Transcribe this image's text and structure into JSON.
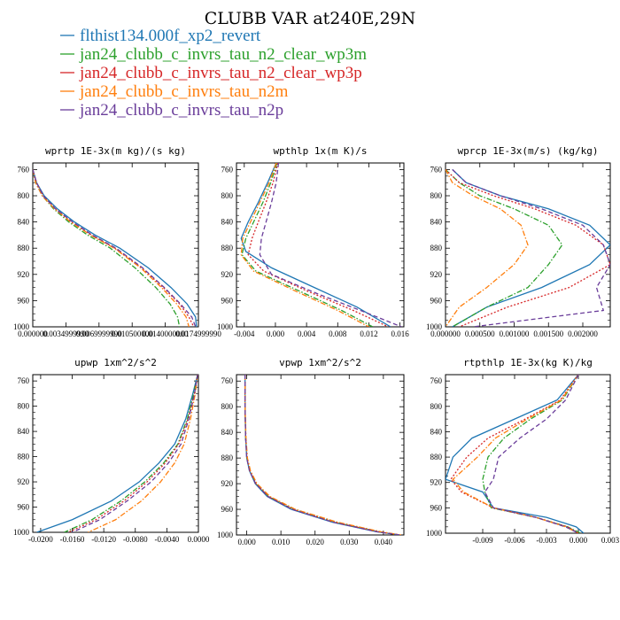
{
  "title": "CLUBB VAR at240E,29N",
  "legend": [
    {
      "name": "flthist134.000f_xp2_revert",
      "color": "#1f77b4",
      "dash": ""
    },
    {
      "name": "jan24_clubb_c_invrs_tau_n2_clear_wp3m",
      "color": "#2ca02c",
      "dash": "6,2,1.5,2"
    },
    {
      "name": "jan24_clubb_c_invrs_tau_n2_clear_wp3p",
      "color": "#d62728",
      "dash": "2,2"
    },
    {
      "name": "jan24_clubb_c_invrs_tau_n2m",
      "color": "#ff7f0e",
      "dash": "6,2,1.5,2"
    },
    {
      "name": "jan24_clubb_c_invrs_tau_n2p",
      "color": "#6a3d9a",
      "dash": "5,3"
    }
  ],
  "chart_data": [
    {
      "type": "line",
      "title": "wprtp  1E-3x(m kg)/(s kg)",
      "xlim": [
        0,
        0.0175
      ],
      "ylim": [
        1000,
        750
      ],
      "xticks": [
        0.0,
        0.0035,
        0.007,
        0.0105,
        0.014,
        0.0175
      ],
      "xticklabels": [
        "0.000000",
        "0.0034999990",
        "0.0069999990",
        "0.010500000",
        "0.0140000000",
        "0.0174999990"
      ],
      "yticks": [
        760,
        800,
        840,
        880,
        920,
        960,
        1000
      ],
      "series": [
        {
          "name": "flthist134.000f_xp2_revert",
          "x": [
            0.0,
            0.0004,
            0.0012,
            0.0026,
            0.0044,
            0.0066,
            0.0092,
            0.0122,
            0.0146,
            0.0163,
            0.0172,
            0.0173
          ],
          "y": [
            760,
            780,
            800,
            820,
            840,
            860,
            880,
            910,
            940,
            965,
            985,
            1000
          ]
        },
        {
          "name": "jan24_clubb_c_invrs_tau_n2_clear_wp3m",
          "x": [
            0.0,
            0.0003,
            0.001,
            0.0022,
            0.0038,
            0.0058,
            0.0082,
            0.0108,
            0.013,
            0.0145,
            0.0153,
            0.0155
          ],
          "y": [
            760,
            780,
            800,
            820,
            840,
            860,
            880,
            910,
            940,
            965,
            985,
            1000
          ]
        },
        {
          "name": "jan24_clubb_c_invrs_tau_n2_clear_wp3p",
          "x": [
            0.0,
            0.0004,
            0.0011,
            0.0024,
            0.0041,
            0.0062,
            0.0087,
            0.0115,
            0.0138,
            0.0155,
            0.0165,
            0.017
          ],
          "y": [
            760,
            780,
            800,
            820,
            840,
            860,
            880,
            910,
            940,
            965,
            985,
            1000
          ]
        },
        {
          "name": "jan24_clubb_c_invrs_tau_n2m",
          "x": [
            0.0,
            0.0003,
            0.001,
            0.0023,
            0.004,
            0.0061,
            0.0086,
            0.0114,
            0.0136,
            0.0152,
            0.0162,
            0.0165
          ],
          "y": [
            760,
            780,
            800,
            820,
            840,
            860,
            880,
            910,
            940,
            965,
            985,
            1000
          ]
        },
        {
          "name": "jan24_clubb_c_invrs_tau_n2p",
          "x": [
            0.0,
            0.0004,
            0.0011,
            0.0024,
            0.0042,
            0.0063,
            0.0088,
            0.0116,
            0.0139,
            0.0156,
            0.0168,
            0.0172
          ],
          "y": [
            760,
            780,
            800,
            820,
            840,
            860,
            880,
            910,
            940,
            965,
            985,
            1000
          ]
        }
      ]
    },
    {
      "type": "line",
      "title": "wpthlp  1x(m K)/s",
      "xlim": [
        -0.005,
        0.0165
      ],
      "ylim": [
        1000,
        750
      ],
      "xticks": [
        -0.004,
        0.0,
        0.004,
        0.008,
        0.012,
        0.016
      ],
      "xticklabels": [
        "-0.004",
        "0.000",
        "0.004",
        "0.008",
        "0.012",
        "0.016"
      ],
      "yticks": [
        760,
        800,
        840,
        880,
        920,
        960,
        1000
      ],
      "series": [
        {
          "name": "flthist134.000f_xp2_revert",
          "x": [
            0.0001,
            -0.001,
            -0.0022,
            -0.0035,
            -0.0044,
            -0.0038,
            -0.0005,
            0.005,
            0.0105,
            0.0148
          ],
          "y": [
            750,
            780,
            810,
            840,
            865,
            885,
            910,
            940,
            970,
            1000
          ]
        },
        {
          "name": "jan24_clubb_c_invrs_tau_n2_clear_wp3m",
          "x": [
            0.0002,
            -0.0006,
            -0.0016,
            -0.0028,
            -0.0038,
            -0.0043,
            -0.0025,
            0.003,
            0.0085,
            0.0125
          ],
          "y": [
            750,
            780,
            810,
            840,
            865,
            890,
            915,
            945,
            975,
            1000
          ]
        },
        {
          "name": "jan24_clubb_c_invrs_tau_n2_clear_wp3p",
          "x": [
            0.0003,
            -0.0003,
            -0.0012,
            -0.0022,
            -0.003,
            -0.0035,
            -0.0015,
            0.004,
            0.01,
            0.0145
          ],
          "y": [
            750,
            780,
            810,
            840,
            865,
            890,
            915,
            945,
            975,
            1000
          ]
        },
        {
          "name": "jan24_clubb_c_invrs_tau_n2m",
          "x": [
            0.0001,
            -0.0008,
            -0.002,
            -0.0032,
            -0.0042,
            -0.0044,
            -0.0028,
            0.0025,
            0.008,
            0.012
          ],
          "y": [
            750,
            780,
            810,
            840,
            865,
            890,
            915,
            945,
            975,
            1000
          ]
        },
        {
          "name": "jan24_clubb_c_invrs_tau_n2p",
          "x": [
            0.0004,
            0.0001,
            -0.0005,
            -0.0012,
            -0.0018,
            -0.002,
            -0.0005,
            0.0055,
            0.012,
            0.0162
          ],
          "y": [
            750,
            780,
            810,
            840,
            865,
            890,
            920,
            950,
            980,
            1000
          ]
        }
      ]
    },
    {
      "type": "line",
      "title": "wprcp  1E-3x(m/s) (kg/kg)",
      "xlim": [
        0,
        0.0024
      ],
      "ylim": [
        1000,
        750
      ],
      "xticks": [
        0.0,
        0.0005,
        0.001,
        0.0015,
        0.002
      ],
      "xticklabels": [
        "0.000000",
        "0.000500",
        "0.001000",
        "0.001500",
        "0.002000"
      ],
      "yticks": [
        760,
        800,
        840,
        880,
        920,
        960,
        1000
      ],
      "series": [
        {
          "name": "flthist134.000f_xp2_revert",
          "x": [
            0.0001,
            0.0003,
            0.0008,
            0.0015,
            0.0021,
            0.0024,
            0.0021,
            0.0014,
            0.0006,
            0.0001
          ],
          "y": [
            760,
            780,
            800,
            820,
            845,
            875,
            905,
            940,
            970,
            1000
          ]
        },
        {
          "name": "jan24_clubb_c_invrs_tau_n2_clear_wp3m",
          "x": [
            0.0,
            0.0002,
            0.0005,
            0.001,
            0.0015,
            0.0017,
            0.0015,
            0.0012,
            0.0006,
            0.0001
          ],
          "y": [
            760,
            780,
            800,
            820,
            845,
            875,
            905,
            940,
            970,
            1000
          ]
        },
        {
          "name": "jan24_clubb_c_invrs_tau_n2_clear_wp3p",
          "x": [
            0.0,
            0.0002,
            0.0007,
            0.0013,
            0.0019,
            0.0023,
            0.0024,
            0.0018,
            0.0009,
            0.0002
          ],
          "y": [
            760,
            780,
            800,
            820,
            845,
            875,
            905,
            940,
            970,
            1000
          ]
        },
        {
          "name": "jan24_clubb_c_invrs_tau_n2m",
          "x": [
            0.0,
            0.0001,
            0.0004,
            0.0008,
            0.0011,
            0.0012,
            0.001,
            0.0006,
            0.0002,
            0.0
          ],
          "y": [
            760,
            780,
            800,
            820,
            845,
            875,
            905,
            940,
            970,
            1000
          ]
        },
        {
          "name": "jan24_clubb_c_invrs_tau_n2p",
          "x": [
            0.0001,
            0.0003,
            0.0008,
            0.0014,
            0.002,
            0.0023,
            0.0024,
            0.0022,
            0.0023,
            0.0004
          ],
          "y": [
            760,
            780,
            800,
            820,
            845,
            875,
            905,
            940,
            975,
            1000
          ]
        }
      ]
    },
    {
      "type": "line",
      "title": "upwp  1xm^2/s^2",
      "xlim": [
        -0.021,
        0.0
      ],
      "ylim": [
        1000,
        750
      ],
      "xticks": [
        -0.02,
        -0.016,
        -0.012,
        -0.008,
        -0.004,
        0.0
      ],
      "xticklabels": [
        "-0.0200",
        "-0.0160",
        "-0.0120",
        "-0.0080",
        "-0.0040",
        "0.0000"
      ],
      "yticks": [
        760,
        800,
        840,
        880,
        920,
        960,
        1000
      ],
      "series": [
        {
          "name": "flthist134.000f_xp2_revert",
          "x": [
            -0.0001,
            -0.0007,
            -0.0016,
            -0.003,
            -0.005,
            -0.0075,
            -0.011,
            -0.016,
            -0.0205
          ],
          "y": [
            750,
            780,
            820,
            860,
            890,
            920,
            950,
            980,
            1000
          ]
        },
        {
          "name": "jan24_clubb_c_invrs_tau_n2_clear_wp3m",
          "x": [
            -0.0001,
            -0.0006,
            -0.0014,
            -0.0026,
            -0.0044,
            -0.0068,
            -0.0098,
            -0.0135,
            -0.017
          ],
          "y": [
            750,
            780,
            820,
            860,
            890,
            920,
            950,
            980,
            1000
          ]
        },
        {
          "name": "jan24_clubb_c_invrs_tau_n2_clear_wp3p",
          "x": [
            -0.0001,
            -0.0005,
            -0.0013,
            -0.0025,
            -0.0042,
            -0.0065,
            -0.0094,
            -0.013,
            -0.0165
          ],
          "y": [
            750,
            780,
            820,
            860,
            890,
            920,
            950,
            980,
            1000
          ]
        },
        {
          "name": "jan24_clubb_c_invrs_tau_n2m",
          "x": [
            -0.0001,
            -0.0004,
            -0.001,
            -0.0018,
            -0.003,
            -0.0048,
            -0.0072,
            -0.0105,
            -0.014
          ],
          "y": [
            750,
            780,
            820,
            860,
            890,
            920,
            950,
            980,
            1000
          ]
        },
        {
          "name": "jan24_clubb_c_invrs_tau_n2p",
          "x": [
            -0.0001,
            -0.0005,
            -0.0012,
            -0.0022,
            -0.0038,
            -0.006,
            -0.009,
            -0.0125,
            -0.016
          ],
          "y": [
            750,
            780,
            820,
            860,
            890,
            920,
            950,
            980,
            1000
          ]
        }
      ]
    },
    {
      "type": "line",
      "title": "vpwp  1xm^2/s^2",
      "xlim": [
        -0.003,
        0.046
      ],
      "ylim": [
        1000,
        750
      ],
      "xticks": [
        0.0,
        0.01,
        0.02,
        0.03,
        0.04
      ],
      "xticklabels": [
        "0.000",
        "0.010",
        "0.020",
        "0.030",
        "0.040"
      ],
      "yticks": [
        760,
        800,
        840,
        880,
        920,
        960,
        1000
      ],
      "series": [
        {
          "name": "flthist134.000f_xp2_revert",
          "x": [
            -0.0005,
            -0.0005,
            -0.0003,
            0.0,
            0.0008,
            0.0025,
            0.006,
            0.013,
            0.025,
            0.038,
            0.045
          ],
          "y": [
            750,
            800,
            850,
            880,
            900,
            920,
            940,
            960,
            980,
            995,
            1000
          ]
        },
        {
          "name": "jan24_clubb_c_invrs_tau_n2_clear_wp3m",
          "x": [
            -0.0005,
            -0.0005,
            -0.0003,
            0.0001,
            0.001,
            0.0028,
            0.0065,
            0.014,
            0.0262,
            0.039,
            0.0445
          ],
          "y": [
            750,
            800,
            850,
            880,
            900,
            920,
            940,
            960,
            980,
            995,
            1000
          ]
        },
        {
          "name": "jan24_clubb_c_invrs_tau_n2_clear_wp3p",
          "x": [
            -0.0005,
            -0.0005,
            -0.0003,
            0.0001,
            0.0009,
            0.0027,
            0.0063,
            0.0135,
            0.0255,
            0.0385,
            0.0448
          ],
          "y": [
            750,
            800,
            850,
            880,
            900,
            920,
            940,
            960,
            980,
            995,
            1000
          ]
        },
        {
          "name": "jan24_clubb_c_invrs_tau_n2m",
          "x": [
            -0.0005,
            -0.0005,
            -0.0002,
            0.0002,
            0.0011,
            0.003,
            0.0068,
            0.0142,
            0.0265,
            0.0393,
            0.0452
          ],
          "y": [
            750,
            800,
            850,
            880,
            900,
            920,
            940,
            960,
            980,
            995,
            1000
          ]
        },
        {
          "name": "jan24_clubb_c_invrs_tau_n2p",
          "x": [
            -0.0005,
            -0.0005,
            -0.0003,
            0.0,
            0.0008,
            0.0026,
            0.0062,
            0.0133,
            0.0252,
            0.0382,
            0.0447
          ],
          "y": [
            750,
            800,
            850,
            880,
            900,
            920,
            940,
            960,
            980,
            995,
            1000
          ]
        }
      ]
    },
    {
      "type": "line",
      "title": "rtpthlp  1E-3x(kg K)/kg",
      "xlim": [
        -0.0125,
        0.003
      ],
      "ylim": [
        1000,
        750
      ],
      "xticks": [
        -0.009,
        -0.006,
        -0.003,
        0.0,
        0.003
      ],
      "xticklabels": [
        "-0.009",
        "-0.006",
        "-0.003",
        "0.000",
        "0.003"
      ],
      "yticks": [
        760,
        800,
        840,
        880,
        920,
        960,
        1000
      ],
      "series": [
        {
          "name": "flthist134.000f_xp2_revert",
          "x": [
            0.0,
            -0.002,
            -0.006,
            -0.01,
            -0.0118,
            -0.0125,
            -0.009,
            -0.008,
            -0.003,
            -0.0002,
            0.0005
          ],
          "y": [
            750,
            790,
            820,
            850,
            880,
            915,
            935,
            960,
            975,
            990,
            1000
          ]
        },
        {
          "name": "jan24_clubb_c_invrs_tau_n2_clear_wp3m",
          "x": [
            0.0,
            -0.0015,
            -0.0045,
            -0.007,
            -0.0085,
            -0.009,
            -0.0088,
            -0.0082,
            -0.004,
            -0.001,
            0.0002
          ],
          "y": [
            750,
            790,
            820,
            850,
            880,
            915,
            935,
            960,
            975,
            990,
            1000
          ]
        },
        {
          "name": "jan24_clubb_c_invrs_tau_n2_clear_wp3p",
          "x": [
            0.0,
            -0.0017,
            -0.005,
            -0.0085,
            -0.0105,
            -0.012,
            -0.011,
            -0.008,
            -0.004,
            -0.001,
            0.0
          ],
          "y": [
            750,
            790,
            820,
            850,
            880,
            915,
            935,
            960,
            975,
            990,
            1000
          ]
        },
        {
          "name": "jan24_clubb_c_invrs_tau_n2m",
          "x": [
            0.0,
            -0.0016,
            -0.0048,
            -0.0078,
            -0.0095,
            -0.0118,
            -0.0108,
            -0.008,
            -0.004,
            -0.0012,
            0.0
          ],
          "y": [
            750,
            790,
            820,
            850,
            880,
            915,
            935,
            960,
            975,
            990,
            1000
          ]
        },
        {
          "name": "jan24_clubb_c_invrs_tau_n2p",
          "x": [
            0.0,
            -0.0012,
            -0.003,
            -0.0055,
            -0.0075,
            -0.008,
            -0.0088,
            -0.008,
            -0.004,
            -0.0012,
            0.0
          ],
          "y": [
            750,
            790,
            820,
            850,
            880,
            915,
            935,
            960,
            975,
            990,
            1000
          ]
        }
      ]
    }
  ]
}
